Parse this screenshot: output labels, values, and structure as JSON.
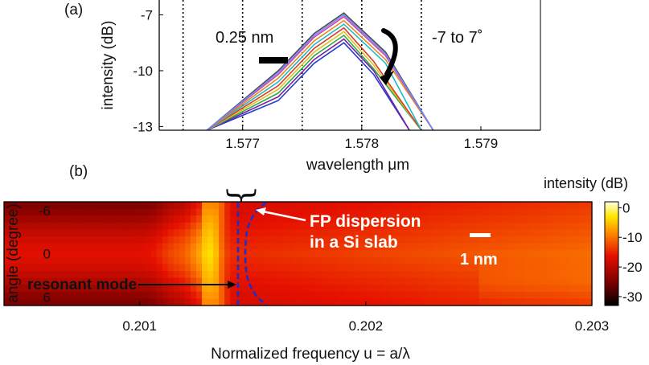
{
  "chart_data": [
    {
      "type": "line",
      "panel_label": "(a)",
      "xlabel": "wavelength μm",
      "ylabel": "intensity (dB)",
      "xlim": [
        1.5763,
        1.5795
      ],
      "ylim": [
        -13.2,
        -6.2
      ],
      "x_ticks": [
        1.577,
        1.578,
        1.579
      ],
      "x_tick_labels": [
        "1.577",
        "1.578",
        "1.579"
      ],
      "y_ticks": [
        -7,
        -10,
        -13
      ],
      "y_tick_labels": [
        "-7",
        "-10",
        "-13"
      ],
      "dotted_vlines": [
        1.5765,
        1.577,
        1.5775,
        1.578,
        1.5785
      ],
      "grid": false,
      "annotations": {
        "scale_bar": "0.25 nm",
        "angle_range": "-7 to 7˚"
      },
      "series": [
        {
          "color": "#1f3bd6",
          "x": [
            1.5767,
            1.5773,
            1.5776,
            1.57785,
            1.5781,
            1.5784
          ],
          "y": [
            -13.2,
            -11.6,
            -9.6,
            -8.5,
            -10.2,
            -13.2
          ]
        },
        {
          "color": "#7a1fa0",
          "x": [
            1.5767,
            1.5773,
            1.5776,
            1.57785,
            1.5781,
            1.5784
          ],
          "y": [
            -13.2,
            -11.4,
            -9.4,
            -8.3,
            -10.0,
            -13.2
          ]
        },
        {
          "color": "#2aa84a",
          "x": [
            1.5767,
            1.5773,
            1.5776,
            1.57785,
            1.5781,
            1.5785
          ],
          "y": [
            -13.2,
            -11.2,
            -9.2,
            -8.1,
            -9.9,
            -13.2
          ]
        },
        {
          "color": "#e0c020",
          "x": [
            1.5767,
            1.5773,
            1.5776,
            1.57785,
            1.5781,
            1.5785
          ],
          "y": [
            -13.2,
            -11.0,
            -9.0,
            -7.9,
            -9.7,
            -13.2
          ]
        },
        {
          "color": "#d93a2a",
          "x": [
            1.5767,
            1.5773,
            1.5776,
            1.57785,
            1.5781,
            1.5785
          ],
          "y": [
            -13.2,
            -10.8,
            -8.8,
            -7.7,
            -9.5,
            -13.2
          ]
        },
        {
          "color": "#20b8c8",
          "x": [
            1.5767,
            1.5773,
            1.5776,
            1.57785,
            1.5782,
            1.5785
          ],
          "y": [
            -13.2,
            -10.6,
            -8.6,
            -7.5,
            -9.6,
            -13.2
          ]
        },
        {
          "color": "#e08a20",
          "x": [
            1.5767,
            1.5773,
            1.5776,
            1.57785,
            1.5782,
            1.5786
          ],
          "y": [
            -13.2,
            -10.4,
            -8.4,
            -7.3,
            -9.4,
            -13.2
          ]
        },
        {
          "color": "#e040a0",
          "x": [
            1.5767,
            1.5773,
            1.5776,
            1.57785,
            1.5782,
            1.5786
          ],
          "y": [
            -13.2,
            -10.2,
            -8.2,
            -7.1,
            -9.2,
            -13.2
          ]
        },
        {
          "color": "#4a4a4a",
          "x": [
            1.5767,
            1.5773,
            1.5776,
            1.57785,
            1.5782,
            1.5786
          ],
          "y": [
            -13.2,
            -10.0,
            -8.0,
            -6.9,
            -9.0,
            -13.2
          ]
        },
        {
          "color": "#6c8cff",
          "x": [
            1.5767,
            1.5773,
            1.5776,
            1.57785,
            1.5782,
            1.5786
          ],
          "y": [
            -13.2,
            -10.1,
            -8.1,
            -7.0,
            -9.1,
            -13.2
          ]
        }
      ]
    },
    {
      "type": "heatmap",
      "panel_label": "(b)",
      "xlabel": "Normalized frequency u = a/λ",
      "ylabel": "angle (degree)",
      "xlim": [
        0.2004,
        0.203
      ],
      "ylim": [
        -7.2,
        7.2
      ],
      "x_ticks": [
        0.201,
        0.202,
        0.203
      ],
      "x_tick_labels": [
        "0.201",
        "0.202",
        "0.203"
      ],
      "y_ticks": [
        -6,
        0,
        6
      ],
      "y_tick_labels": [
        "-6",
        "0",
        "6"
      ],
      "resonant_frequency": 0.20128,
      "colorbar": {
        "title": "intensity (dB)",
        "range": [
          -33,
          2
        ],
        "ticks": [
          0,
          -10,
          -20,
          -30
        ],
        "tick_labels": [
          "0",
          "-10",
          "-20",
          "-30"
        ]
      },
      "annotations": {
        "fp_label_line1": "FP dispersion",
        "fp_label_line2": "in a Si slab",
        "scale_bar": "1 nm",
        "resonant_label": "resonant mode"
      }
    }
  ]
}
